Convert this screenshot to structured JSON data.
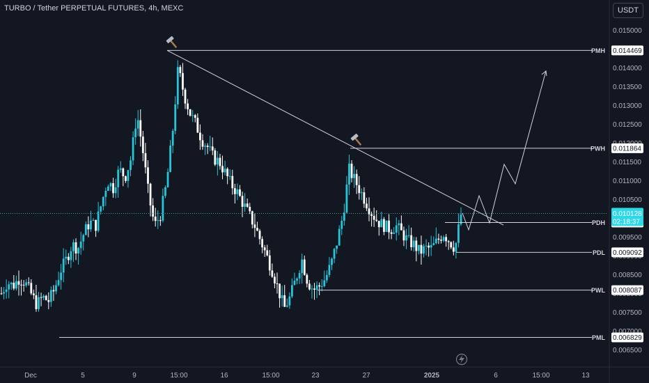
{
  "title": "TURBO / Tether PERPETUAL FUTURES, 4h, MEXC",
  "currency_button": "USDT",
  "colors": {
    "background": "#131722",
    "up": "#26c6da",
    "down": "#ffffff",
    "line": "#d1d4dc",
    "price_tag": "#2ed8e8",
    "last_price_line": "#26a69a"
  },
  "chart_data": {
    "type": "candlestick",
    "ylim": [
      0.0062,
      0.0155
    ],
    "price_ticks": [
      "0.015000",
      "0.014500",
      "0.014000",
      "0.013500",
      "0.013000",
      "0.012500",
      "0.012000",
      "0.011500",
      "0.011000",
      "0.010500",
      "0.010000",
      "0.009500",
      "0.009000",
      "0.008500",
      "0.008000",
      "0.007500",
      "0.007000",
      "0.006500"
    ],
    "x_ticks": [
      "Dec",
      "5",
      "9",
      "15:00",
      "16",
      "15:00",
      "23",
      "27",
      "2025",
      "6",
      "15:00",
      "13"
    ],
    "bold_x_ticks": [
      "2025"
    ],
    "last_price": {
      "value": "0.010128",
      "countdown": "02:18:37"
    },
    "levels": [
      {
        "label": "PMH",
        "value": "0.014469"
      },
      {
        "label": "PWH",
        "value": "0.011864"
      },
      {
        "label": "PDH",
        "value": "0.009889"
      },
      {
        "label": "PDL",
        "value": "0.009092"
      },
      {
        "label": "PWL",
        "value": "0.008087"
      },
      {
        "label": "PML",
        "value": "0.006829"
      }
    ],
    "price_path": [
      0.008,
      0.0083,
      0.0082,
      0.0084,
      0.0083,
      0.008,
      0.0077,
      0.0079,
      0.0078,
      0.0081,
      0.0086,
      0.0089,
      0.0093,
      0.0092,
      0.0096,
      0.0099,
      0.0098,
      0.0104,
      0.011,
      0.0108,
      0.0113,
      0.0111,
      0.0116,
      0.0128,
      0.0118,
      0.0106,
      0.0098,
      0.0101,
      0.0109,
      0.0122,
      0.014,
      0.0133,
      0.0128,
      0.0125,
      0.0121,
      0.0119,
      0.0116,
      0.0115,
      0.0112,
      0.0109,
      0.0107,
      0.0104,
      0.0101,
      0.0098,
      0.0094,
      0.009,
      0.0086,
      0.0081,
      0.0076,
      0.0079,
      0.0084,
      0.0089,
      0.0083,
      0.0081,
      0.0082,
      0.0084,
      0.0088,
      0.0094,
      0.0101,
      0.0113,
      0.011,
      0.0107,
      0.0104,
      0.0101,
      0.0099,
      0.0098,
      0.0097,
      0.0098,
      0.0096,
      0.0094,
      0.0093,
      0.0091,
      0.0092,
      0.0092,
      0.0094,
      0.0096,
      0.0094,
      0.0092,
      0.0101
    ]
  }
}
